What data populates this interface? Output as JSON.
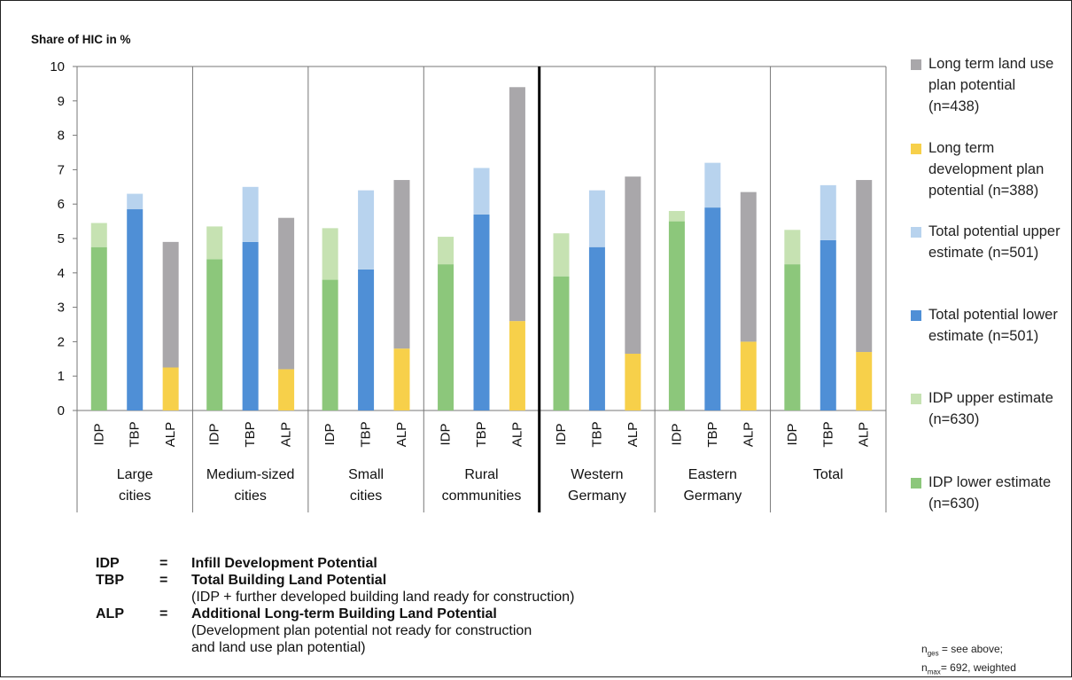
{
  "chart_data": {
    "type": "bar",
    "stacked": true,
    "title": "Share of HIC in %",
    "ylim": [
      0,
      10
    ],
    "yticks": [
      "0",
      "1",
      "2",
      "3",
      "4",
      "5",
      "6",
      "7",
      "8",
      "9",
      "10"
    ],
    "grid": false,
    "legend_position": "right",
    "groups": [
      {
        "label": "Large cities",
        "bars": [
          {
            "category": "IDP",
            "lower": 4.75,
            "upper": 5.45
          },
          {
            "category": "TBP",
            "lower": 5.85,
            "upper": 6.3
          },
          {
            "category": "ALP",
            "development": 1.25,
            "land_use": 4.9
          }
        ]
      },
      {
        "label": "Medium-sized cities",
        "bars": [
          {
            "category": "IDP",
            "lower": 4.4,
            "upper": 5.35
          },
          {
            "category": "TBP",
            "lower": 4.9,
            "upper": 6.5
          },
          {
            "category": "ALP",
            "development": 1.2,
            "land_use": 5.6
          }
        ]
      },
      {
        "label": "Small cities",
        "bars": [
          {
            "category": "IDP",
            "lower": 3.8,
            "upper": 5.3
          },
          {
            "category": "TBP",
            "lower": 4.1,
            "upper": 6.4
          },
          {
            "category": "ALP",
            "development": 1.8,
            "land_use": 6.7
          }
        ]
      },
      {
        "label": "Rural communities",
        "bars": [
          {
            "category": "IDP",
            "lower": 4.25,
            "upper": 5.05
          },
          {
            "category": "TBP",
            "lower": 5.7,
            "upper": 7.05
          },
          {
            "category": "ALP",
            "development": 2.6,
            "land_use": 9.4
          }
        ]
      },
      {
        "label": "Western Germany",
        "bars": [
          {
            "category": "IDP",
            "lower": 3.9,
            "upper": 5.15
          },
          {
            "category": "TBP",
            "lower": 4.75,
            "upper": 6.4
          },
          {
            "category": "ALP",
            "development": 1.65,
            "land_use": 6.8
          }
        ]
      },
      {
        "label": "Eastern Germany",
        "bars": [
          {
            "category": "IDP",
            "lower": 5.5,
            "upper": 5.8
          },
          {
            "category": "TBP",
            "lower": 5.9,
            "upper": 7.2
          },
          {
            "category": "ALP",
            "development": 2.0,
            "land_use": 6.35
          }
        ]
      },
      {
        "label": "Total",
        "bars": [
          {
            "category": "IDP",
            "lower": 4.25,
            "upper": 5.25
          },
          {
            "category": "TBP",
            "lower": 4.95,
            "upper": 6.55
          },
          {
            "category": "ALP",
            "development": 1.7,
            "land_use": 6.7
          }
        ]
      }
    ],
    "legend": [
      {
        "key": "land_use",
        "label": "Long term land use plan potential (n=438)",
        "color": "#a9a7aa"
      },
      {
        "key": "development",
        "label": "Long term development plan potential (n=388)",
        "color": "#f7d04a"
      },
      {
        "key": "tbp_upper",
        "label": "Total potential upper estimate (n=501)",
        "color": "#b8d3ee"
      },
      {
        "key": "tbp_lower",
        "label": "Total potential lower estimate (n=501)",
        "color": "#4f8fd6"
      },
      {
        "key": "idp_upper",
        "label": "IDP upper estimate (n=630)",
        "color": "#c6e2b2"
      },
      {
        "key": "idp_lower",
        "label": "IDP lower estimate (n=630)",
        "color": "#8cc77b"
      }
    ]
  },
  "abbreviations": [
    {
      "key": "IDP",
      "eq": "=",
      "definition": "Infill Development Potential",
      "notes": []
    },
    {
      "key": "TBP",
      "eq": "=",
      "definition": "Total Building Land Potential",
      "notes": [
        "(IDP + further developed building land ready for construction)"
      ]
    },
    {
      "key": "ALP",
      "eq": "=",
      "definition": "Additional Long-term Building Land Potential",
      "notes": [
        "(Development plan potential not ready for construction",
        "and land use plan potential)"
      ]
    }
  ],
  "footnote": {
    "line1_sub": "ges",
    "line1_rest": " = see above;",
    "line2_sub": "max",
    "line2_rest": "= 692, weighted"
  }
}
